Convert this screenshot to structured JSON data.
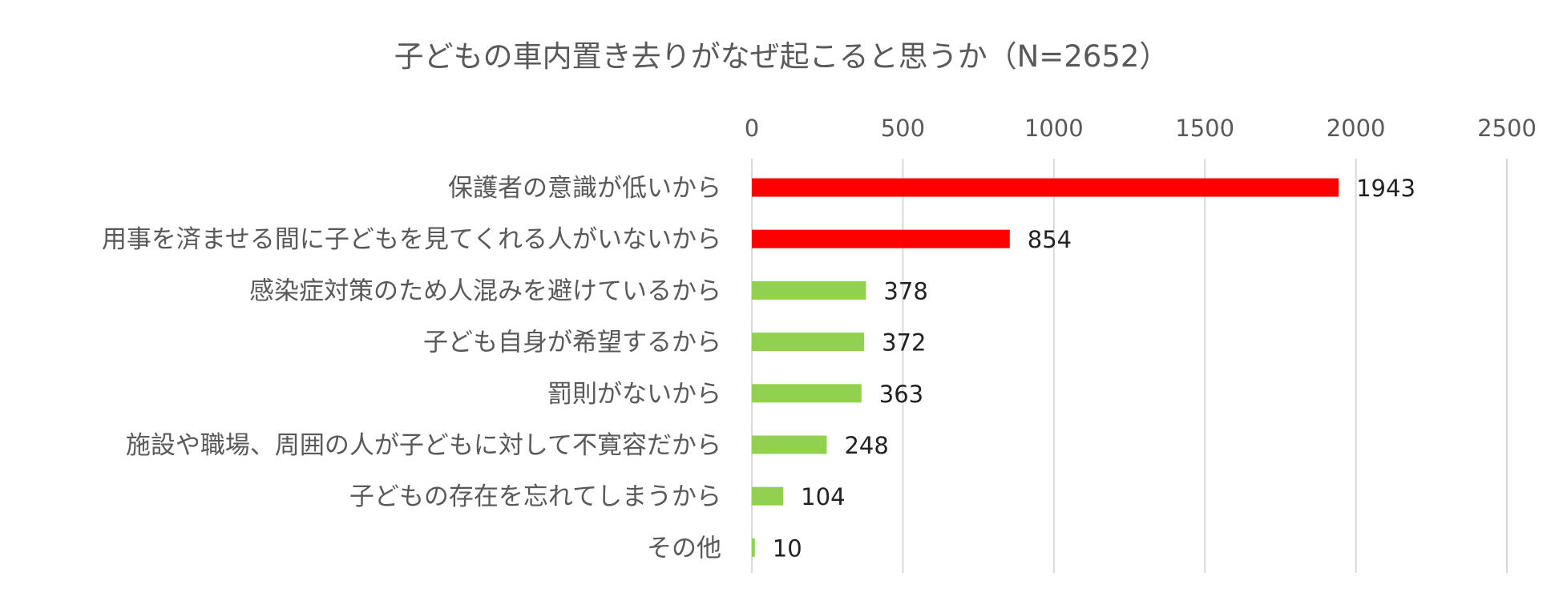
{
  "chart_data": {
    "type": "bar",
    "orientation": "horizontal",
    "title": "子どもの車内置き去りがなぜ起こると思うか（N=2652）",
    "categories": [
      "保護者の意識が低いから",
      "用事を済ませる間に子どもを見てくれる人がいないから",
      "感染症対策のため人混みを避けているから",
      "子ども自身が希望するから",
      "罰則がないから",
      "施設や職場、周囲の人が子どもに対して不寛容だから",
      "子どもの存在を忘れてしまうから",
      "その他"
    ],
    "values": [
      1943,
      854,
      378,
      372,
      363,
      248,
      104,
      10
    ],
    "bar_colors": [
      "#ff0000",
      "#ff0000",
      "#92d050",
      "#92d050",
      "#92d050",
      "#92d050",
      "#92d050",
      "#92d050"
    ],
    "xlim": [
      0,
      2500
    ],
    "xticks": [
      0,
      500,
      1000,
      1500,
      2000,
      2500
    ],
    "xaxis_position": "top",
    "grid": true,
    "data_labels": true,
    "gridline_color": "#d9d9d9"
  }
}
